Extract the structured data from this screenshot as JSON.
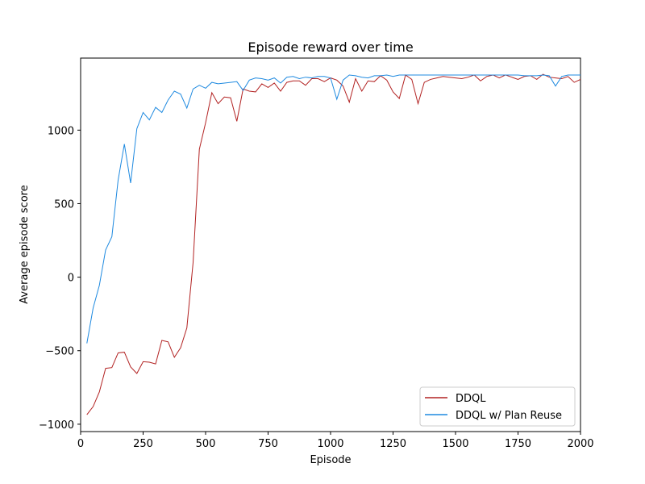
{
  "chart_data": {
    "type": "line",
    "title": "Episode reward over time",
    "xlabel": "Episode",
    "ylabel": "Average episode score",
    "xlim": [
      0,
      2000
    ],
    "ylim": [
      -1050,
      1490
    ],
    "xticks": [
      0,
      250,
      500,
      750,
      1000,
      1250,
      1500,
      1750,
      2000
    ],
    "yticks": [
      -1000,
      -500,
      0,
      500,
      1000
    ],
    "grid": false,
    "legend_position": "bottom-right",
    "x": [
      25,
      50,
      75,
      100,
      125,
      150,
      175,
      200,
      225,
      250,
      275,
      300,
      325,
      350,
      375,
      400,
      425,
      450,
      475,
      500,
      525,
      550,
      575,
      600,
      625,
      650,
      675,
      700,
      725,
      750,
      775,
      800,
      825,
      850,
      875,
      900,
      925,
      950,
      975,
      1000,
      1025,
      1050,
      1075,
      1100,
      1125,
      1150,
      1175,
      1200,
      1225,
      1250,
      1275,
      1300,
      1325,
      1350,
      1375,
      1400,
      1425,
      1450,
      1475,
      1500,
      1525,
      1550,
      1575,
      1600,
      1625,
      1650,
      1675,
      1700,
      1725,
      1750,
      1775,
      1800,
      1825,
      1850,
      1875,
      1900,
      1925,
      1950,
      1975,
      2000
    ],
    "series": [
      {
        "name": "DDQL",
        "color": "#b22222",
        "values": [
          -935,
          -880,
          -780,
          -620,
          -615,
          -515,
          -510,
          -610,
          -655,
          -575,
          -578,
          -590,
          -430,
          -440,
          -545,
          -480,
          -345,
          100,
          870,
          1050,
          1255,
          1180,
          1225,
          1220,
          1060,
          1280,
          1265,
          1260,
          1315,
          1290,
          1320,
          1265,
          1325,
          1335,
          1335,
          1305,
          1350,
          1350,
          1330,
          1355,
          1340,
          1300,
          1190,
          1350,
          1265,
          1335,
          1330,
          1370,
          1340,
          1260,
          1215,
          1375,
          1345,
          1180,
          1325,
          1345,
          1355,
          1365,
          1360,
          1355,
          1350,
          1360,
          1375,
          1335,
          1365,
          1375,
          1355,
          1375,
          1360,
          1345,
          1365,
          1370,
          1345,
          1380,
          1360,
          1355,
          1350,
          1365,
          1325,
          1345
        ]
      },
      {
        "name": "DDQL w/ Plan Reuse",
        "color": "#1f8ae0",
        "values": [
          -450,
          -210,
          -55,
          185,
          275,
          660,
          905,
          640,
          1010,
          1120,
          1070,
          1155,
          1120,
          1205,
          1265,
          1245,
          1150,
          1280,
          1305,
          1285,
          1325,
          1315,
          1320,
          1325,
          1330,
          1270,
          1340,
          1355,
          1350,
          1340,
          1355,
          1320,
          1360,
          1365,
          1350,
          1360,
          1355,
          1365,
          1365,
          1355,
          1210,
          1340,
          1375,
          1370,
          1360,
          1355,
          1370,
          1370,
          1375,
          1365,
          1375,
          1375,
          1375,
          1375,
          1375,
          1375,
          1375,
          1375,
          1375,
          1375,
          1375,
          1375,
          1375,
          1375,
          1375,
          1375,
          1375,
          1375,
          1375,
          1375,
          1370,
          1370,
          1370,
          1375,
          1370,
          1300,
          1365,
          1375,
          1375,
          1375
        ]
      }
    ]
  }
}
